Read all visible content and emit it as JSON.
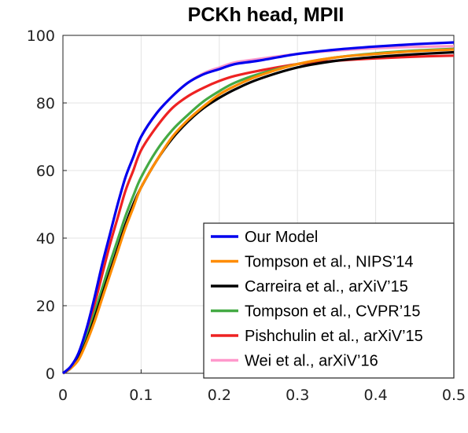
{
  "chart_data": {
    "type": "line",
    "title": "PCKh head, MPII",
    "xlabel": "",
    "ylabel": "",
    "xlim": [
      0,
      0.5
    ],
    "ylim": [
      0,
      100
    ],
    "xticks": [
      "0",
      "0.1",
      "0.2",
      "0.3",
      "0.4",
      "0.5"
    ],
    "yticks": [
      "0",
      "20",
      "40",
      "60",
      "80",
      "100"
    ],
    "grid": true,
    "legend_position": "bottom-right",
    "x": [
      0,
      0.01,
      0.02,
      0.03,
      0.04,
      0.05,
      0.06,
      0.07,
      0.08,
      0.09,
      0.1,
      0.12,
      0.14,
      0.16,
      0.18,
      0.2,
      0.22,
      0.25,
      0.3,
      0.35,
      0.4,
      0.45,
      0.5
    ],
    "series": [
      {
        "name": "Our Model",
        "color": "#0000ee",
        "values": [
          0,
          2,
          6,
          13,
          22,
          32,
          41,
          50,
          58,
          64,
          70,
          77,
          82,
          86,
          88.5,
          90,
          91.5,
          92.5,
          94.5,
          95.8,
          96.7,
          97.4,
          97.9
        ]
      },
      {
        "name": "Tompson et al., NIPS’14",
        "color": "#ff8c00",
        "values": [
          0,
          1.5,
          4,
          9,
          15,
          22,
          29,
          36,
          43,
          49,
          55,
          63,
          70,
          75,
          79,
          82.5,
          85,
          88,
          91.5,
          93.5,
          94.5,
          95.3,
          95.8
        ]
      },
      {
        "name": "Carreira et al., arXiV’15",
        "color": "#000000",
        "values": [
          0,
          1.5,
          4.5,
          9.5,
          16,
          23,
          30,
          37,
          44,
          50,
          55,
          63,
          69.5,
          74.5,
          78.5,
          81.5,
          84,
          87,
          90.5,
          92.5,
          93.6,
          94.4,
          95
        ]
      },
      {
        "name": "Tompson et al., CVPR’15",
        "color": "#44aa44",
        "values": [
          0,
          1.7,
          5,
          10.5,
          17.5,
          25,
          32.5,
          39.5,
          46.5,
          52.5,
          58,
          66,
          72,
          76.5,
          80.5,
          83.5,
          86,
          88.5,
          91.5,
          93.5,
          94.7,
          95.5,
          96
        ]
      },
      {
        "name": "Pishchulin et al., arXiV’15",
        "color": "#ee2222",
        "values": [
          0,
          1.8,
          5.5,
          12,
          20,
          29,
          38,
          46,
          54,
          60,
          66,
          73,
          78.5,
          82,
          84.5,
          86.5,
          88,
          89.5,
          91.5,
          92.5,
          93.2,
          93.7,
          94
        ]
      },
      {
        "name": "Wei et al., arXiV’16",
        "color": "#ff99cc",
        "values": [
          0,
          2,
          6,
          13,
          22,
          32,
          41,
          50,
          58,
          64,
          70,
          77,
          82,
          86,
          88.8,
          90.5,
          92,
          93,
          94.5,
          95.5,
          96.2,
          96.6,
          96.8
        ]
      }
    ]
  }
}
